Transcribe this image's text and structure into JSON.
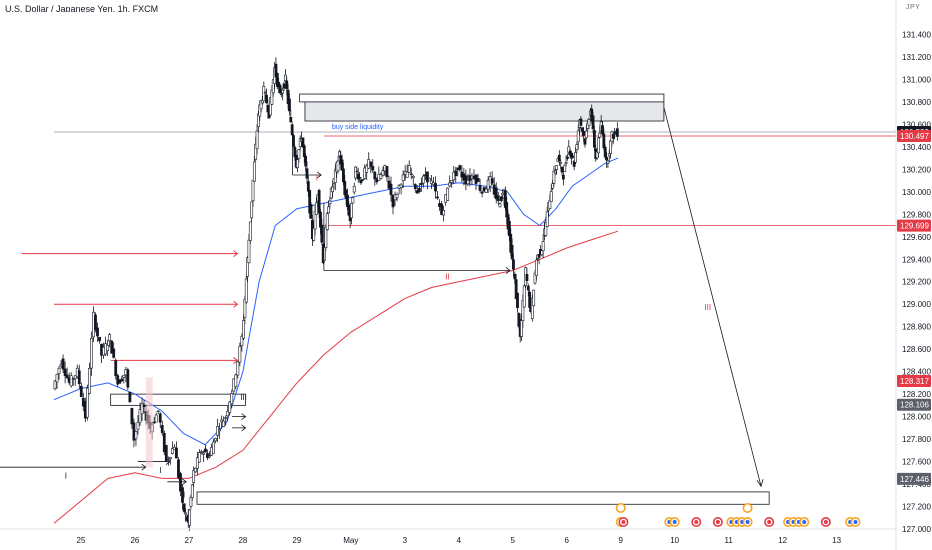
{
  "header": {
    "title": "U.S. Dollar / Japanese Yen, 1h, FXCM",
    "unit": "JPY"
  },
  "chart_data": {
    "type": "candlestick",
    "ylim": [
      127.0,
      131.6
    ],
    "y_ticks": [
      127.0,
      127.2,
      127.4,
      127.6,
      127.8,
      128.0,
      128.2,
      128.4,
      128.6,
      128.8,
      129.0,
      129.2,
      129.4,
      129.6,
      129.8,
      130.0,
      130.2,
      130.4,
      130.6,
      130.8,
      131.0,
      131.2,
      131.4
    ],
    "y_tick_labels": [
      "127.000",
      "127.200",
      "127.400",
      "127.600",
      "127.800",
      "128.000",
      "128.200",
      "128.400",
      "128.600",
      "128.800",
      "129.000",
      "129.200",
      "129.400",
      "129.600",
      "129.800",
      "130.000",
      "130.200",
      "130.400",
      "130.600",
      "130.800",
      "131.000",
      "131.200",
      "131.400"
    ],
    "x_ticks": [
      {
        "label": "25",
        "pos": 0.5
      },
      {
        "label": "26",
        "pos": 1.5
      },
      {
        "label": "27",
        "pos": 2.5
      },
      {
        "label": "28",
        "pos": 3.5
      },
      {
        "label": "29",
        "pos": 4.5
      },
      {
        "label": "May",
        "pos": 5.5
      },
      {
        "label": "3",
        "pos": 6.5
      },
      {
        "label": "4",
        "pos": 7.5
      },
      {
        "label": "5",
        "pos": 8.5
      },
      {
        "label": "6",
        "pos": 9.5
      },
      {
        "label": "9",
        "pos": 10.5
      },
      {
        "label": "10",
        "pos": 11.5
      },
      {
        "label": "11",
        "pos": 12.5
      },
      {
        "label": "12",
        "pos": 13.5
      },
      {
        "label": "13",
        "pos": 14.5
      }
    ],
    "price_tags": [
      {
        "label": "130.532",
        "value": 130.532,
        "color": "#131722"
      },
      {
        "label": "130.497",
        "value": 130.497,
        "color": "#e53945"
      },
      {
        "label": "129.699",
        "value": 129.699,
        "color": "#e53945"
      },
      {
        "label": "128.317",
        "value": 128.317,
        "color": "#e53945"
      },
      {
        "label": "128.106",
        "value": 128.106,
        "color": "#5d606b"
      },
      {
        "label": "127.446",
        "value": 127.446,
        "color": "#5d606b"
      }
    ],
    "last_price": 130.532,
    "ohlc_path": [
      [
        0.0,
        128.25
      ],
      [
        0.15,
        128.5
      ],
      [
        0.3,
        128.3
      ],
      [
        0.45,
        128.4
      ],
      [
        0.6,
        128.0
      ],
      [
        0.75,
        128.9
      ],
      [
        0.9,
        128.55
      ],
      [
        1.05,
        128.7
      ],
      [
        1.2,
        128.3
      ],
      [
        1.35,
        128.4
      ],
      [
        1.5,
        127.8
      ],
      [
        1.65,
        128.1
      ],
      [
        1.8,
        127.9
      ],
      [
        1.95,
        128.05
      ],
      [
        2.1,
        127.6
      ],
      [
        2.25,
        127.75
      ],
      [
        2.4,
        127.2
      ],
      [
        2.5,
        127.05
      ],
      [
        2.6,
        127.5
      ],
      [
        2.75,
        127.7
      ],
      [
        2.9,
        127.65
      ],
      [
        3.05,
        127.9
      ],
      [
        3.2,
        128.0
      ],
      [
        3.35,
        128.3
      ],
      [
        3.5,
        128.7
      ],
      [
        3.6,
        129.4
      ],
      [
        3.7,
        130.1
      ],
      [
        3.8,
        130.7
      ],
      [
        3.9,
        130.9
      ],
      [
        4.0,
        130.7
      ],
      [
        4.1,
        131.1
      ],
      [
        4.2,
        130.85
      ],
      [
        4.3,
        131.0
      ],
      [
        4.4,
        130.6
      ],
      [
        4.5,
        130.25
      ],
      [
        4.6,
        130.5
      ],
      [
        4.7,
        130.1
      ],
      [
        4.8,
        129.6
      ],
      [
        4.9,
        130.0
      ],
      [
        5.0,
        129.4
      ],
      [
        5.1,
        129.9
      ],
      [
        5.2,
        130.1
      ],
      [
        5.3,
        130.35
      ],
      [
        5.4,
        130.0
      ],
      [
        5.5,
        129.75
      ],
      [
        5.6,
        130.2
      ],
      [
        5.7,
        130.1
      ],
      [
        5.85,
        130.25
      ],
      [
        6.0,
        130.1
      ],
      [
        6.15,
        130.2
      ],
      [
        6.3,
        129.9
      ],
      [
        6.45,
        130.1
      ],
      [
        6.6,
        130.2
      ],
      [
        6.75,
        130.0
      ],
      [
        6.9,
        130.15
      ],
      [
        7.05,
        130.05
      ],
      [
        7.2,
        129.8
      ],
      [
        7.35,
        130.1
      ],
      [
        7.5,
        130.2
      ],
      [
        7.65,
        130.1
      ],
      [
        7.8,
        130.15
      ],
      [
        7.95,
        130.0
      ],
      [
        8.1,
        130.1
      ],
      [
        8.25,
        129.9
      ],
      [
        8.35,
        130.0
      ],
      [
        8.45,
        129.6
      ],
      [
        8.55,
        129.2
      ],
      [
        8.65,
        128.7
      ],
      [
        8.75,
        129.3
      ],
      [
        8.85,
        128.9
      ],
      [
        8.95,
        129.4
      ],
      [
        9.05,
        129.5
      ],
      [
        9.15,
        129.8
      ],
      [
        9.25,
        130.1
      ],
      [
        9.35,
        130.3
      ],
      [
        9.45,
        130.15
      ],
      [
        9.55,
        130.4
      ],
      [
        9.65,
        130.25
      ],
      [
        9.75,
        130.65
      ],
      [
        9.85,
        130.45
      ],
      [
        9.95,
        130.75
      ],
      [
        10.05,
        130.3
      ],
      [
        10.15,
        130.6
      ],
      [
        10.25,
        130.25
      ],
      [
        10.35,
        130.5
      ],
      [
        10.45,
        130.53
      ]
    ],
    "ema_blue": [
      [
        0.0,
        128.15
      ],
      [
        0.5,
        128.25
      ],
      [
        1.0,
        128.3
      ],
      [
        1.5,
        128.2
      ],
      [
        2.0,
        128.05
      ],
      [
        2.4,
        127.85
      ],
      [
        2.8,
        127.75
      ],
      [
        3.2,
        127.95
      ],
      [
        3.5,
        128.4
      ],
      [
        3.8,
        129.2
      ],
      [
        4.1,
        129.7
      ],
      [
        4.5,
        129.85
      ],
      [
        5.0,
        129.9
      ],
      [
        5.5,
        129.95
      ],
      [
        6.0,
        130.0
      ],
      [
        6.5,
        130.05
      ],
      [
        7.0,
        130.05
      ],
      [
        7.5,
        130.08
      ],
      [
        8.0,
        130.05
      ],
      [
        8.4,
        130.0
      ],
      [
        8.7,
        129.8
      ],
      [
        9.0,
        129.7
      ],
      [
        9.3,
        129.85
      ],
      [
        9.6,
        130.05
      ],
      [
        9.9,
        130.15
      ],
      [
        10.2,
        130.25
      ],
      [
        10.45,
        130.3
      ]
    ],
    "ema_red": [
      [
        0.0,
        127.05
      ],
      [
        0.5,
        127.25
      ],
      [
        1.0,
        127.45
      ],
      [
        1.5,
        127.5
      ],
      [
        2.0,
        127.45
      ],
      [
        2.5,
        127.45
      ],
      [
        3.0,
        127.55
      ],
      [
        3.5,
        127.7
      ],
      [
        4.0,
        128.0
      ],
      [
        4.5,
        128.3
      ],
      [
        5.0,
        128.55
      ],
      [
        5.5,
        128.75
      ],
      [
        6.0,
        128.9
      ],
      [
        6.5,
        129.05
      ],
      [
        7.0,
        129.15
      ],
      [
        7.5,
        129.2
      ],
      [
        8.0,
        129.25
      ],
      [
        8.5,
        129.3
      ],
      [
        9.0,
        129.4
      ],
      [
        9.5,
        129.5
      ],
      [
        10.0,
        129.58
      ],
      [
        10.45,
        129.65
      ]
    ],
    "hlines": [
      {
        "value": 129.699,
        "x0": 5.0,
        "x1": 15.6,
        "color": "#e53945"
      },
      {
        "value": 130.497,
        "x0": 5.0,
        "x1": 15.6,
        "color": "#e53945"
      },
      {
        "value": 130.532,
        "x0": 0.0,
        "x1": 15.6,
        "color": "#9598a1"
      }
    ],
    "red_arrows": [
      {
        "y": 129.45,
        "x0": -0.6,
        "x1": 3.4
      },
      {
        "y": 129.0,
        "x0": 0.0,
        "x1": 3.4
      },
      {
        "y": 128.5,
        "x0": 1.05,
        "x1": 3.4
      }
    ],
    "zones": [
      {
        "y0": 130.8,
        "y1": 130.87,
        "x0": 4.55,
        "x1": 11.3,
        "fill": "#ffffff"
      },
      {
        "y0": 130.63,
        "y1": 130.8,
        "x0": 4.65,
        "x1": 11.3,
        "fill": "#e6e7ea"
      },
      {
        "y0": 128.1,
        "y1": 128.2,
        "x0": 1.05,
        "x1": 3.55,
        "fill": "#ffffff"
      },
      {
        "y0": 127.22,
        "y1": 127.33,
        "x0": 2.65,
        "x1": 13.25,
        "fill": "#ffffff"
      }
    ],
    "annotations": [
      {
        "text": "buy side liquidity",
        "x": 5.15,
        "y": 130.56,
        "color": "#2962ff",
        "size": 7
      },
      {
        "text": "I",
        "x": 4.85,
        "y": 130.1,
        "color": "#e53945",
        "size": 8
      },
      {
        "text": "II",
        "x": 7.25,
        "y": 129.22,
        "color": "#e53945",
        "size": 8
      },
      {
        "text": "III",
        "x": 12.05,
        "y": 128.95,
        "color": "#e53945",
        "size": 8
      },
      {
        "text": "I",
        "x": 0.2,
        "y": 127.45,
        "color": "#131722",
        "size": 8
      },
      {
        "text": "I",
        "x": 1.95,
        "y": 127.5,
        "color": "#131722",
        "size": 8
      },
      {
        "text": "II",
        "x": 2.35,
        "y": 127.28,
        "color": "#131722",
        "size": 8
      },
      {
        "text": "III",
        "x": 3.45,
        "y": 128.15,
        "color": "#131722",
        "size": 8
      }
    ],
    "econ_events": [
      {
        "label": "US",
        "x": 10.5
      },
      {
        "label": "JP",
        "x": 10.55
      },
      {
        "label": "US",
        "x": 11.4
      },
      {
        "label": "US",
        "x": 11.5
      },
      {
        "label": "JP",
        "x": 11.9
      },
      {
        "label": "JP",
        "x": 12.3
      },
      {
        "label": "US",
        "x": 12.55
      },
      {
        "label": "US",
        "x": 12.65
      },
      {
        "label": "US",
        "x": 12.75
      },
      {
        "label": "US",
        "x": 12.85
      },
      {
        "label": "JP",
        "x": 13.25
      },
      {
        "label": "US",
        "x": 13.6
      },
      {
        "label": "US",
        "x": 13.7
      },
      {
        "label": "US",
        "x": 13.8
      },
      {
        "label": "US",
        "x": 13.9
      },
      {
        "label": "JP",
        "x": 14.3
      },
      {
        "label": "US",
        "x": 14.75
      },
      {
        "label": "US",
        "x": 14.85
      }
    ]
  }
}
